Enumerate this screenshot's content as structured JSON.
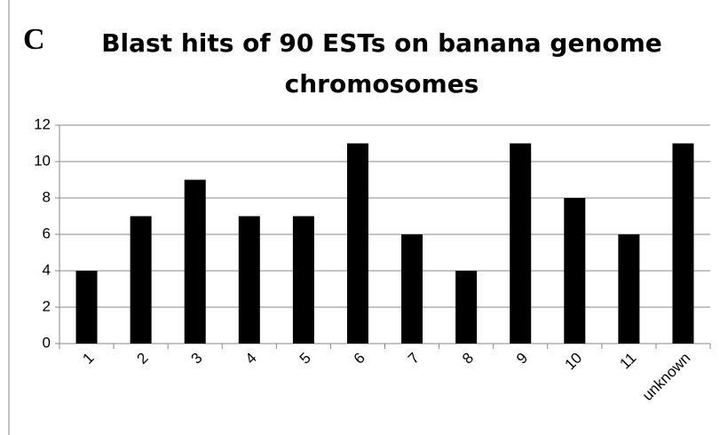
{
  "chart_data": {
    "type": "bar",
    "panel_label": "C",
    "title": "Blast hits of 90 ESTs on banana genome chromosomes",
    "categories": [
      "1",
      "2",
      "3",
      "4",
      "5",
      "6",
      "7",
      "8",
      "9",
      "10",
      "11",
      "unknown"
    ],
    "values": [
      4,
      7,
      9,
      7,
      7,
      11,
      6,
      4,
      11,
      8,
      6,
      11
    ],
    "color": "#000000",
    "ylim": [
      0,
      12
    ],
    "yticks": [
      0,
      2,
      4,
      6,
      8,
      10,
      12
    ],
    "grid": true
  }
}
